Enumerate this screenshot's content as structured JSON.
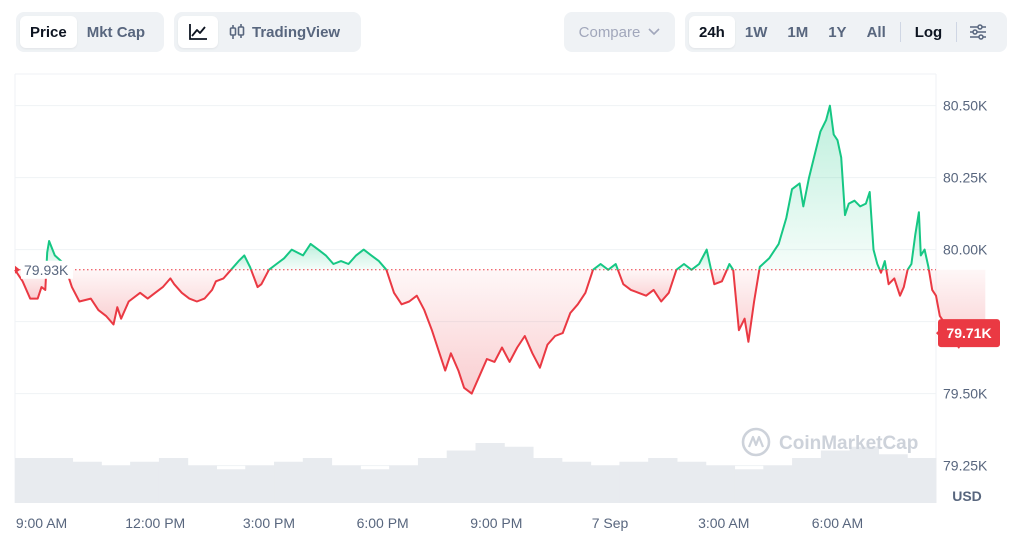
{
  "toolbar": {
    "type_tabs": [
      {
        "label": "Price",
        "active": true
      },
      {
        "label": "Mkt Cap",
        "active": false
      }
    ],
    "style_tabs": [
      {
        "label": "",
        "icon": "line-chart-icon",
        "active": true
      },
      {
        "label": "TradingView",
        "icon": "candlestick-icon",
        "active": false
      }
    ],
    "compare": {
      "label": "Compare",
      "icon": "chevron-down-icon"
    },
    "ranges": [
      {
        "label": "24h",
        "active": true
      },
      {
        "label": "1W",
        "active": false
      },
      {
        "label": "1M",
        "active": false
      },
      {
        "label": "1Y",
        "active": false
      },
      {
        "label": "All",
        "active": false
      }
    ],
    "log_label": "Log",
    "settings_icon": "sliders-icon"
  },
  "watermark": {
    "text": "CoinMarketCap",
    "icon": "coinmarketcap-logo-icon"
  },
  "colors": {
    "up": "#16c784",
    "down": "#ea3943",
    "grid": "#eff2f5",
    "text": "#58667e",
    "volume": "#e8ebef",
    "baseline": "#ea3943"
  },
  "chart_data": {
    "type": "area",
    "currency_label": "USD",
    "baseline": {
      "value": 79930,
      "label": "79.93K"
    },
    "current": {
      "value": 79710,
      "label": "79.71K"
    },
    "ylim": [
      79120,
      80610
    ],
    "y_ticks": [
      {
        "value": 80500,
        "label": "80.50K"
      },
      {
        "value": 80250,
        "label": "80.25K"
      },
      {
        "value": 80000,
        "label": "80.00K"
      },
      {
        "value": 79750,
        "label": ""
      },
      {
        "value": 79500,
        "label": "79.50K"
      },
      {
        "value": 79250,
        "label": "79.25K"
      }
    ],
    "x_ticks": [
      "9:00 AM",
      "12:00 PM",
      "3:00 PM",
      "6:00 PM",
      "9:00 PM",
      "7 Sep",
      "3:00 AM",
      "6:00 AM"
    ],
    "x_tick_hours": [
      9,
      12,
      15,
      18,
      21,
      24,
      27,
      30
    ],
    "xlim_hours": [
      8.3,
      32.6
    ],
    "series": [
      {
        "values": [
          [
            8.3,
            79930
          ],
          [
            8.5,
            79890
          ],
          [
            8.7,
            79830
          ],
          [
            8.9,
            79830
          ],
          [
            9.0,
            79870
          ],
          [
            9.1,
            79860
          ],
          [
            9.15,
            79990
          ],
          [
            9.2,
            80030
          ],
          [
            9.35,
            79980
          ],
          [
            9.6,
            79950
          ],
          [
            9.8,
            79870
          ],
          [
            10.0,
            79820
          ],
          [
            10.3,
            79830
          ],
          [
            10.5,
            79790
          ],
          [
            10.7,
            79770
          ],
          [
            10.9,
            79740
          ],
          [
            11.0,
            79800
          ],
          [
            11.1,
            79760
          ],
          [
            11.3,
            79820
          ],
          [
            11.6,
            79850
          ],
          [
            11.8,
            79830
          ],
          [
            12.0,
            79850
          ],
          [
            12.2,
            79870
          ],
          [
            12.4,
            79900
          ],
          [
            12.5,
            79880
          ],
          [
            12.7,
            79850
          ],
          [
            12.9,
            79830
          ],
          [
            13.1,
            79820
          ],
          [
            13.3,
            79830
          ],
          [
            13.5,
            79860
          ],
          [
            13.6,
            79890
          ],
          [
            13.8,
            79900
          ],
          [
            14.0,
            79930
          ],
          [
            14.2,
            79960
          ],
          [
            14.35,
            79980
          ],
          [
            14.5,
            79940
          ],
          [
            14.7,
            79870
          ],
          [
            14.8,
            79880
          ],
          [
            15.0,
            79930
          ],
          [
            15.2,
            79950
          ],
          [
            15.4,
            79970
          ],
          [
            15.6,
            80000
          ],
          [
            15.9,
            79980
          ],
          [
            16.1,
            80020
          ],
          [
            16.3,
            80000
          ],
          [
            16.5,
            79980
          ],
          [
            16.7,
            79950
          ],
          [
            16.9,
            79960
          ],
          [
            17.1,
            79950
          ],
          [
            17.3,
            79980
          ],
          [
            17.5,
            80000
          ],
          [
            17.7,
            79980
          ],
          [
            17.9,
            79960
          ],
          [
            18.1,
            79930
          ],
          [
            18.3,
            79850
          ],
          [
            18.5,
            79810
          ],
          [
            18.7,
            79820
          ],
          [
            18.9,
            79840
          ],
          [
            19.1,
            79790
          ],
          [
            19.3,
            79720
          ],
          [
            19.5,
            79640
          ],
          [
            19.65,
            79580
          ],
          [
            19.8,
            79640
          ],
          [
            20.0,
            79580
          ],
          [
            20.15,
            79520
          ],
          [
            20.35,
            79500
          ],
          [
            20.55,
            79560
          ],
          [
            20.75,
            79620
          ],
          [
            20.95,
            79610
          ],
          [
            21.15,
            79660
          ],
          [
            21.35,
            79610
          ],
          [
            21.55,
            79660
          ],
          [
            21.75,
            79700
          ],
          [
            21.95,
            79640
          ],
          [
            22.15,
            79590
          ],
          [
            22.35,
            79670
          ],
          [
            22.55,
            79700
          ],
          [
            22.75,
            79710
          ],
          [
            22.95,
            79780
          ],
          [
            23.15,
            79810
          ],
          [
            23.35,
            79850
          ],
          [
            23.55,
            79930
          ],
          [
            23.75,
            79950
          ],
          [
            23.95,
            79930
          ],
          [
            24.15,
            79950
          ],
          [
            24.35,
            79880
          ],
          [
            24.55,
            79860
          ],
          [
            24.75,
            79850
          ],
          [
            24.95,
            79840
          ],
          [
            25.15,
            79860
          ],
          [
            25.35,
            79820
          ],
          [
            25.55,
            79850
          ],
          [
            25.75,
            79930
          ],
          [
            25.95,
            79950
          ],
          [
            26.15,
            79930
          ],
          [
            26.35,
            79950
          ],
          [
            26.55,
            80000
          ],
          [
            26.75,
            79880
          ],
          [
            26.95,
            79890
          ],
          [
            27.15,
            79950
          ],
          [
            27.25,
            79930
          ],
          [
            27.4,
            79720
          ],
          [
            27.55,
            79760
          ],
          [
            27.65,
            79680
          ],
          [
            27.8,
            79820
          ],
          [
            27.95,
            79940
          ],
          [
            28.2,
            79970
          ],
          [
            28.45,
            80020
          ],
          [
            28.65,
            80110
          ],
          [
            28.8,
            80210
          ],
          [
            29.0,
            80230
          ],
          [
            29.1,
            80150
          ],
          [
            29.25,
            80250
          ],
          [
            29.4,
            80330
          ],
          [
            29.55,
            80410
          ],
          [
            29.7,
            80450
          ],
          [
            29.8,
            80500
          ],
          [
            29.9,
            80400
          ],
          [
            30.0,
            80380
          ],
          [
            30.1,
            80320
          ],
          [
            30.2,
            80120
          ],
          [
            30.3,
            80160
          ],
          [
            30.45,
            80170
          ],
          [
            30.6,
            80150
          ],
          [
            30.75,
            80160
          ],
          [
            30.85,
            80200
          ],
          [
            30.95,
            80000
          ],
          [
            31.05,
            79950
          ],
          [
            31.15,
            79920
          ],
          [
            31.25,
            79960
          ],
          [
            31.35,
            79880
          ],
          [
            31.5,
            79900
          ],
          [
            31.65,
            79840
          ],
          [
            31.75,
            79870
          ],
          [
            31.85,
            79930
          ],
          [
            31.95,
            79950
          ],
          [
            32.05,
            80050
          ],
          [
            32.15,
            80130
          ],
          [
            32.2,
            79980
          ],
          [
            32.3,
            80000
          ],
          [
            32.4,
            79940
          ],
          [
            32.5,
            79860
          ],
          [
            32.6,
            79840
          ],
          [
            32.7,
            79770
          ],
          [
            32.8,
            79750
          ],
          [
            32.9,
            79720
          ],
          [
            33.0,
            79700
          ],
          [
            33.1,
            79700
          ],
          [
            33.2,
            79660
          ],
          [
            33.3,
            79690
          ],
          [
            33.4,
            79670
          ],
          [
            33.5,
            79690
          ],
          [
            33.6,
            79700
          ],
          [
            33.7,
            79680
          ],
          [
            33.8,
            79710
          ],
          [
            33.9,
            79710
          ]
        ]
      }
    ],
    "volume": [
      0.06,
      0.06,
      0.055,
      0.05,
      0.055,
      0.06,
      0.05,
      0.045,
      0.05,
      0.055,
      0.06,
      0.05,
      0.045,
      0.05,
      0.06,
      0.07,
      0.08,
      0.075,
      0.06,
      0.055,
      0.05,
      0.055,
      0.06,
      0.055,
      0.05,
      0.045,
      0.05,
      0.06,
      0.07,
      0.075,
      0.065,
      0.06
    ]
  }
}
